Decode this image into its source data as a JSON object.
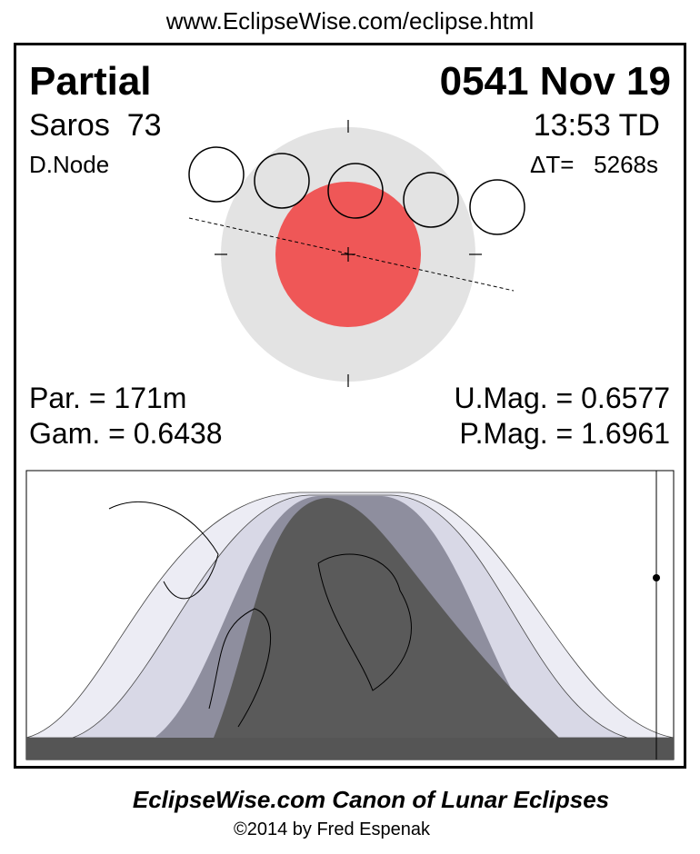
{
  "header": {
    "url": "www.EclipseWise.com/eclipse.html"
  },
  "panel": {
    "type": "Partial",
    "date": "0541 Nov 19",
    "saros": "Saros  73",
    "time": "13:53 TD",
    "node": "D.Node",
    "delta_t": "ΔT=   5268s",
    "par": "Par. = 171m",
    "gam": "Gam. = 0.6438",
    "umag": "U.Mag. = 0.6577",
    "pmag": "P.Mag. = 1.6961"
  },
  "footer": {
    "title": "EclipseWise.com Canon of Lunar Eclipses",
    "credit": "©2014 by Fred Espenak"
  }
}
